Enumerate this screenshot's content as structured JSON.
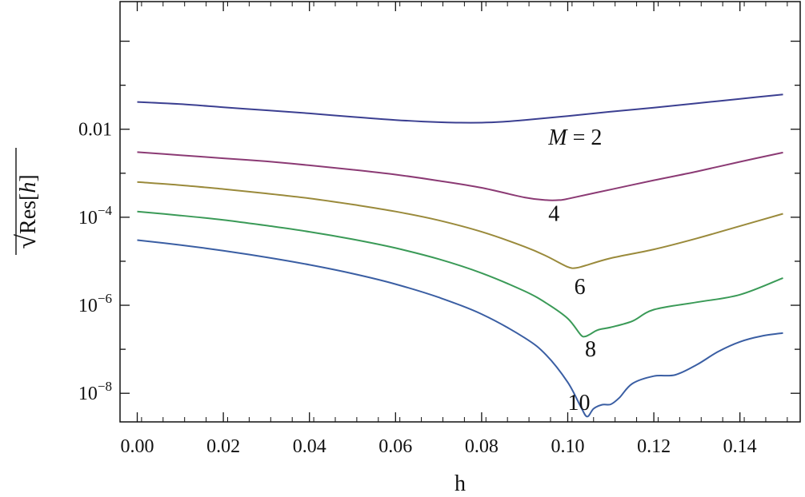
{
  "chart_data": {
    "type": "line",
    "xlabel": "h",
    "ylabel_parts": {
      "radical": "√",
      "prefix": "Res[",
      "var": "h",
      "suffix": "]"
    },
    "xlim": [
      -0.004,
      0.154
    ],
    "ylim_log10": [
      -8.65,
      0.9
    ],
    "y_scale": "log",
    "grid": false,
    "x_ticks": [
      0,
      0.02,
      0.04,
      0.06,
      0.08,
      0.1,
      0.12,
      0.14
    ],
    "x_tick_labels": [
      "0.00",
      "0.02",
      "0.04",
      "0.06",
      "0.08",
      "0.10",
      "0.12",
      "0.14"
    ],
    "y_ticks": [
      {
        "exp": -2,
        "label": "0.01",
        "plain": true
      },
      {
        "exp": -4,
        "base": "10",
        "sup": "−4"
      },
      {
        "exp": -6,
        "base": "10",
        "sup": "−6"
      },
      {
        "exp": -8,
        "base": "10",
        "sup": "−8"
      }
    ],
    "series": [
      {
        "label": "M = 2",
        "label_italic_part": "M",
        "label_rest": " = 2",
        "color": "#3b3f91",
        "label_anchor": [
          0.0955,
          -2.17
        ],
        "points": [
          [
            0,
            -1.38
          ],
          [
            0.01,
            -1.43
          ],
          [
            0.02,
            -1.5
          ],
          [
            0.03,
            -1.57
          ],
          [
            0.04,
            -1.64
          ],
          [
            0.05,
            -1.72
          ],
          [
            0.06,
            -1.79
          ],
          [
            0.07,
            -1.84
          ],
          [
            0.075,
            -1.85
          ],
          [
            0.08,
            -1.85
          ],
          [
            0.085,
            -1.83
          ],
          [
            0.09,
            -1.79
          ],
          [
            0.1,
            -1.7
          ],
          [
            0.11,
            -1.6
          ],
          [
            0.12,
            -1.51
          ],
          [
            0.13,
            -1.41
          ],
          [
            0.14,
            -1.31
          ],
          [
            0.15,
            -1.21
          ]
        ]
      },
      {
        "label": "4",
        "color": "#8b3a74",
        "label_anchor": [
          0.0955,
          -3.9
        ],
        "points": [
          [
            0,
            -2.52
          ],
          [
            0.01,
            -2.59
          ],
          [
            0.02,
            -2.66
          ],
          [
            0.03,
            -2.73
          ],
          [
            0.04,
            -2.82
          ],
          [
            0.05,
            -2.92
          ],
          [
            0.06,
            -3.03
          ],
          [
            0.07,
            -3.17
          ],
          [
            0.08,
            -3.33
          ],
          [
            0.09,
            -3.55
          ],
          [
            0.095,
            -3.61
          ],
          [
            0.098,
            -3.61
          ],
          [
            0.1,
            -3.58
          ],
          [
            0.11,
            -3.37
          ],
          [
            0.12,
            -3.16
          ],
          [
            0.13,
            -2.96
          ],
          [
            0.14,
            -2.74
          ],
          [
            0.15,
            -2.53
          ]
        ]
      },
      {
        "label": "6",
        "color": "#9a8a3b",
        "label_anchor": [
          0.1015,
          -5.56
        ],
        "points": [
          [
            0,
            -3.2
          ],
          [
            0.01,
            -3.27
          ],
          [
            0.02,
            -3.36
          ],
          [
            0.03,
            -3.46
          ],
          [
            0.04,
            -3.57
          ],
          [
            0.05,
            -3.71
          ],
          [
            0.06,
            -3.87
          ],
          [
            0.07,
            -4.07
          ],
          [
            0.08,
            -4.33
          ],
          [
            0.09,
            -4.67
          ],
          [
            0.095,
            -4.88
          ],
          [
            0.1,
            -5.13
          ],
          [
            0.102,
            -5.15
          ],
          [
            0.104,
            -5.1
          ],
          [
            0.11,
            -4.93
          ],
          [
            0.12,
            -4.73
          ],
          [
            0.13,
            -4.48
          ],
          [
            0.14,
            -4.2
          ],
          [
            0.15,
            -3.92
          ]
        ]
      },
      {
        "label": "8",
        "color": "#3a9a57",
        "label_anchor": [
          0.104,
          -6.98
        ],
        "points": [
          [
            0,
            -3.87
          ],
          [
            0.01,
            -3.96
          ],
          [
            0.02,
            -4.06
          ],
          [
            0.03,
            -4.19
          ],
          [
            0.04,
            -4.33
          ],
          [
            0.05,
            -4.5
          ],
          [
            0.06,
            -4.7
          ],
          [
            0.07,
            -4.95
          ],
          [
            0.08,
            -5.27
          ],
          [
            0.09,
            -5.68
          ],
          [
            0.095,
            -5.95
          ],
          [
            0.1,
            -6.3
          ],
          [
            0.103,
            -6.67
          ],
          [
            0.104,
            -6.71
          ],
          [
            0.105,
            -6.67
          ],
          [
            0.107,
            -6.56
          ],
          [
            0.11,
            -6.5
          ],
          [
            0.115,
            -6.36
          ],
          [
            0.12,
            -6.1
          ],
          [
            0.13,
            -5.93
          ],
          [
            0.14,
            -5.76
          ],
          [
            0.15,
            -5.38
          ]
        ]
      },
      {
        "label": "10",
        "color": "#3a5ea3",
        "label_anchor": [
          0.1,
          -8.2
        ],
        "points": [
          [
            0,
            -4.52
          ],
          [
            0.01,
            -4.63
          ],
          [
            0.02,
            -4.76
          ],
          [
            0.03,
            -4.91
          ],
          [
            0.04,
            -5.08
          ],
          [
            0.05,
            -5.28
          ],
          [
            0.06,
            -5.52
          ],
          [
            0.07,
            -5.82
          ],
          [
            0.08,
            -6.2
          ],
          [
            0.09,
            -6.74
          ],
          [
            0.095,
            -7.13
          ],
          [
            0.1,
            -7.75
          ],
          [
            0.103,
            -8.3
          ],
          [
            0.1045,
            -8.53
          ],
          [
            0.106,
            -8.35
          ],
          [
            0.108,
            -8.26
          ],
          [
            0.11,
            -8.25
          ],
          [
            0.112,
            -8.1
          ],
          [
            0.115,
            -7.78
          ],
          [
            0.12,
            -7.61
          ],
          [
            0.125,
            -7.58
          ],
          [
            0.13,
            -7.35
          ],
          [
            0.135,
            -7.05
          ],
          [
            0.14,
            -6.83
          ],
          [
            0.145,
            -6.7
          ],
          [
            0.15,
            -6.63
          ]
        ]
      }
    ]
  }
}
